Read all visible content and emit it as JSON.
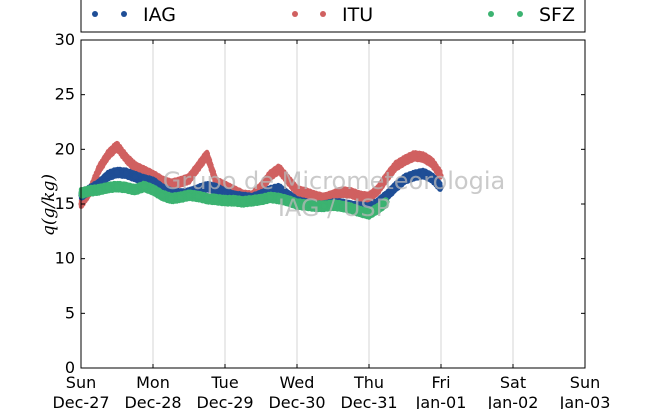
{
  "chart_data": {
    "type": "scatter",
    "ylabel": "q(g/kg)",
    "ylim": [
      0,
      30
    ],
    "yticks": [
      0,
      5,
      10,
      15,
      20,
      25,
      30
    ],
    "xlim": [
      "2015-12-27",
      "2016-01-03"
    ],
    "xticks": [
      {
        "day": "Sun",
        "date": "Dec-27"
      },
      {
        "day": "Mon",
        "date": "Dec-28"
      },
      {
        "day": "Tue",
        "date": "Dec-29"
      },
      {
        "day": "Wed",
        "date": "Dec-30"
      },
      {
        "day": "Thu",
        "date": "Dec-31"
      },
      {
        "day": "Fri",
        "date": "Jan-01"
      },
      {
        "day": "Sat",
        "date": "Jan-02"
      },
      {
        "day": "Sun",
        "date": "Jan-03"
      }
    ],
    "grid": "vertical",
    "legend_position": "top",
    "watermark": [
      "Grupo de Micrometeorologia",
      "IAG / USP"
    ],
    "series": [
      {
        "name": "IAG",
        "color": "#1f4e96",
        "x": [
          "2015-12-27 00:00",
          "2015-12-27 03:00",
          "2015-12-27 06:00",
          "2015-12-27 09:00",
          "2015-12-27 12:00",
          "2015-12-27 15:00",
          "2015-12-27 18:00",
          "2015-12-27 21:00",
          "2015-12-28 00:00",
          "2015-12-28 03:00",
          "2015-12-28 06:00",
          "2015-12-28 09:00",
          "2015-12-28 12:00",
          "2015-12-28 15:00",
          "2015-12-28 18:00",
          "2015-12-28 21:00",
          "2015-12-29 00:00",
          "2015-12-29 03:00",
          "2015-12-29 06:00",
          "2015-12-29 09:00",
          "2015-12-29 12:00",
          "2015-12-29 15:00",
          "2015-12-29 18:00",
          "2015-12-29 21:00",
          "2015-12-30 00:00",
          "2015-12-30 03:00",
          "2015-12-30 06:00",
          "2015-12-30 09:00",
          "2015-12-30 12:00",
          "2015-12-30 15:00",
          "2015-12-30 18:00",
          "2015-12-30 21:00",
          "2015-12-31 00:00",
          "2015-12-31 03:00",
          "2015-12-31 06:00",
          "2015-12-31 09:00",
          "2015-12-31 12:00",
          "2015-12-31 15:00",
          "2015-12-31 18:00",
          "2015-12-31 21:00",
          "2016-01-01 00:00"
        ],
        "y": [
          15.8,
          16.3,
          16.8,
          17.6,
          17.9,
          17.8,
          17.5,
          17.2,
          17.0,
          16.4,
          16.0,
          15.9,
          16.0,
          16.3,
          16.6,
          16.4,
          16.0,
          15.7,
          15.6,
          15.5,
          15.8,
          16.2,
          16.4,
          15.8,
          15.2,
          15.0,
          14.8,
          14.8,
          15.0,
          15.0,
          14.8,
          14.7,
          14.6,
          15.1,
          15.8,
          16.6,
          17.3,
          17.6,
          17.8,
          17.4,
          16.5
        ]
      },
      {
        "name": "ITU",
        "color": "#d06060",
        "x": [
          "2015-12-27 00:00",
          "2015-12-27 03:00",
          "2015-12-27 06:00",
          "2015-12-27 09:00",
          "2015-12-27 12:00",
          "2015-12-27 15:00",
          "2015-12-27 18:00",
          "2015-12-27 21:00",
          "2015-12-28 00:00",
          "2015-12-28 03:00",
          "2015-12-28 06:00",
          "2015-12-28 09:00",
          "2015-12-28 12:00",
          "2015-12-28 15:00",
          "2015-12-28 18:00",
          "2015-12-28 21:00",
          "2015-12-29 00:00",
          "2015-12-29 03:00",
          "2015-12-29 06:00",
          "2015-12-29 09:00",
          "2015-12-29 12:00",
          "2015-12-29 15:00",
          "2015-12-29 18:00",
          "2015-12-29 21:00",
          "2015-12-30 00:00",
          "2015-12-30 03:00",
          "2015-12-30 06:00",
          "2015-12-30 09:00",
          "2015-12-30 12:00",
          "2015-12-30 15:00",
          "2015-12-30 18:00",
          "2015-12-30 21:00",
          "2015-12-31 00:00",
          "2015-12-31 03:00",
          "2015-12-31 06:00",
          "2015-12-31 09:00",
          "2015-12-31 12:00",
          "2015-12-31 15:00",
          "2015-12-31 18:00",
          "2015-12-31 21:00",
          "2016-01-01 00:00"
        ],
        "y": [
          15.0,
          16.2,
          18.2,
          19.5,
          20.3,
          19.2,
          18.4,
          18.0,
          17.6,
          17.1,
          16.8,
          17.0,
          17.3,
          18.4,
          19.5,
          17.0,
          16.6,
          16.2,
          15.8,
          15.7,
          16.5,
          17.6,
          18.2,
          17.2,
          16.2,
          16.0,
          15.7,
          15.5,
          15.8,
          16.1,
          16.0,
          15.7,
          15.6,
          16.3,
          17.5,
          18.5,
          19.0,
          19.4,
          19.3,
          18.8,
          17.6
        ]
      },
      {
        "name": "SFZ",
        "color": "#3cb371",
        "x": [
          "2015-12-27 00:00",
          "2015-12-27 03:00",
          "2015-12-27 06:00",
          "2015-12-27 09:00",
          "2015-12-27 12:00",
          "2015-12-27 15:00",
          "2015-12-27 18:00",
          "2015-12-27 21:00",
          "2015-12-28 00:00",
          "2015-12-28 03:00",
          "2015-12-28 06:00",
          "2015-12-28 09:00",
          "2015-12-28 12:00",
          "2015-12-28 15:00",
          "2015-12-28 18:00",
          "2015-12-28 21:00",
          "2015-12-29 00:00",
          "2015-12-29 03:00",
          "2015-12-29 06:00",
          "2015-12-29 09:00",
          "2015-12-29 12:00",
          "2015-12-29 15:00",
          "2015-12-29 18:00",
          "2015-12-29 21:00",
          "2015-12-30 00:00",
          "2015-12-30 03:00",
          "2015-12-30 06:00",
          "2015-12-30 09:00",
          "2015-12-30 12:00",
          "2015-12-30 15:00",
          "2015-12-30 18:00",
          "2015-12-30 21:00",
          "2015-12-31 00:00",
          "2015-12-31 03:00",
          "2015-12-31 06:00"
        ],
        "y": [
          16.0,
          16.2,
          16.3,
          16.5,
          16.6,
          16.5,
          16.3,
          16.6,
          16.3,
          15.8,
          15.5,
          15.6,
          15.8,
          15.7,
          15.5,
          15.4,
          15.3,
          15.3,
          15.2,
          15.3,
          15.4,
          15.6,
          15.5,
          15.3,
          15.0,
          14.9,
          14.8,
          14.8,
          14.9,
          14.8,
          14.6,
          14.3,
          14.1,
          14.6,
          15.2
        ]
      }
    ]
  }
}
